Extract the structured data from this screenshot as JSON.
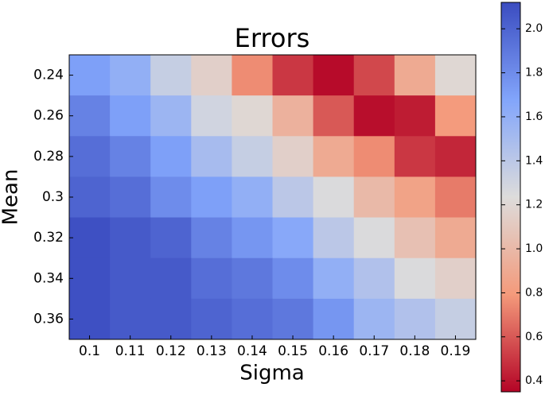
{
  "chart_data": {
    "type": "heatmap",
    "title": "Errors",
    "x_label": "Sigma",
    "y_label": "Mean",
    "x": [
      "0.1",
      "0.11",
      "0.12",
      "0.13",
      "0.14",
      "0.15",
      "0.16",
      "0.17",
      "0.18",
      "0.19"
    ],
    "y": [
      "0.24",
      "0.26",
      "0.28",
      "0.3",
      "0.32",
      "0.34",
      "0.36"
    ],
    "values": [
      [
        1.7,
        1.6,
        1.35,
        1.15,
        0.75,
        0.5,
        0.37,
        0.55,
        0.9,
        1.2
      ],
      [
        1.85,
        1.7,
        1.55,
        1.3,
        1.2,
        0.95,
        0.6,
        0.38,
        0.42,
        0.8
      ],
      [
        1.95,
        1.85,
        1.7,
        1.5,
        1.35,
        1.15,
        0.9,
        0.75,
        0.5,
        0.45
      ],
      [
        2.0,
        1.95,
        1.8,
        1.7,
        1.6,
        1.4,
        1.25,
        1.0,
        0.85,
        0.7
      ],
      [
        2.1,
        2.05,
        2.0,
        1.85,
        1.75,
        1.65,
        1.4,
        1.25,
        1.05,
        0.9
      ],
      [
        2.1,
        2.05,
        2.05,
        1.95,
        1.9,
        1.8,
        1.6,
        1.45,
        1.25,
        1.15
      ],
      [
        2.1,
        2.05,
        2.05,
        2.0,
        1.95,
        1.9,
        1.75,
        1.55,
        1.45,
        1.35
      ]
    ],
    "colormap": "coolwarm_r",
    "clim": [
      0.35,
      2.12
    ],
    "cticks": [
      0.4,
      0.6,
      0.8,
      {
        "value": 1.0,
        "label": "1.0"
      },
      1.2,
      1.4,
      1.6,
      1.8,
      {
        "value": 2.0,
        "label": "2.0"
      }
    ]
  }
}
